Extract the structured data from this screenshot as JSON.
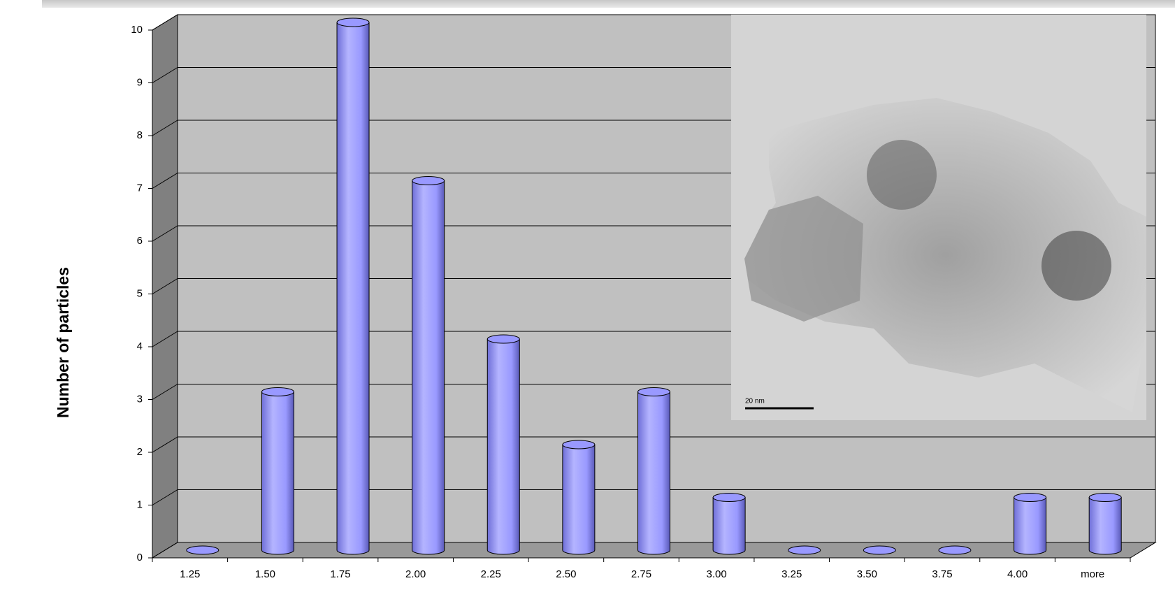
{
  "chart_data": {
    "type": "bar",
    "y_label": "Number of particles",
    "categories": [
      "1.25",
      "1.50",
      "1.75",
      "2.00",
      "2.25",
      "2.50",
      "2.75",
      "3.00",
      "3.25",
      "3.50",
      "3.75",
      "4.00",
      "more"
    ],
    "values": [
      0,
      3,
      10,
      7,
      4,
      2,
      3,
      1,
      0,
      0,
      0,
      1,
      1
    ],
    "color": "#9999ff",
    "ylim": [
      0,
      10
    ],
    "yticks": [
      0,
      1,
      2,
      3,
      4,
      5,
      6,
      7,
      8,
      9,
      10
    ],
    "grid": true,
    "inset_scale_label": "20 nm"
  }
}
